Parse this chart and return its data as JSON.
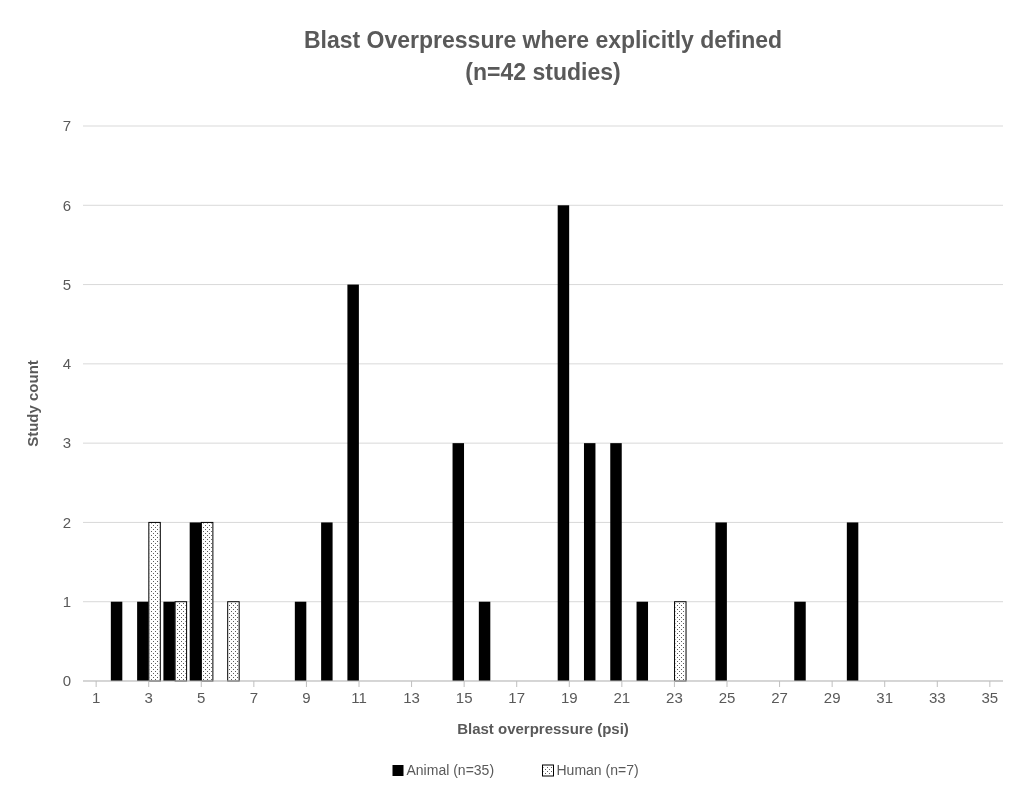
{
  "chart_data": {
    "type": "bar",
    "title": "Blast Overpressure where explicitly defined\n(n=42 studies)",
    "xlabel": "Blast overpressure (psi)",
    "ylabel": "Study count",
    "x": [
      1,
      2,
      3,
      4,
      5,
      6,
      7,
      8,
      9,
      10,
      11,
      12,
      13,
      14,
      15,
      16,
      17,
      18,
      19,
      20,
      21,
      22,
      23,
      24,
      25,
      26,
      27,
      28,
      29,
      30,
      31,
      32,
      33,
      34,
      35
    ],
    "xlim": [
      0.5,
      35.5
    ],
    "xticks": [
      1,
      3,
      5,
      7,
      9,
      11,
      13,
      15,
      17,
      19,
      21,
      23,
      25,
      27,
      29,
      31,
      33,
      35
    ],
    "series": [
      {
        "name": "Animal (n=35)",
        "color": "#000000",
        "values": [
          0,
          1,
          1,
          1,
          2,
          0,
          0,
          0,
          1,
          2,
          5,
          0,
          0,
          0,
          3,
          1,
          0,
          0,
          6,
          3,
          3,
          1,
          0,
          0,
          2,
          0,
          0,
          1,
          0,
          2,
          0,
          0,
          0,
          0,
          0
        ]
      },
      {
        "name": "Human (n=7)",
        "color": "#ffffff",
        "values": [
          0,
          0,
          2,
          1,
          2,
          1,
          0,
          0,
          0,
          0,
          0,
          0,
          0,
          0,
          0,
          0,
          0,
          0,
          0,
          0,
          0,
          0,
          1,
          0,
          0,
          0,
          0,
          0,
          0,
          0,
          0,
          0,
          0,
          0,
          0
        ]
      }
    ],
    "ylim": [
      0,
      7
    ],
    "yticks": [
      0,
      1,
      2,
      3,
      4,
      5,
      6,
      7
    ],
    "grid": "y",
    "legend": "bottom"
  }
}
